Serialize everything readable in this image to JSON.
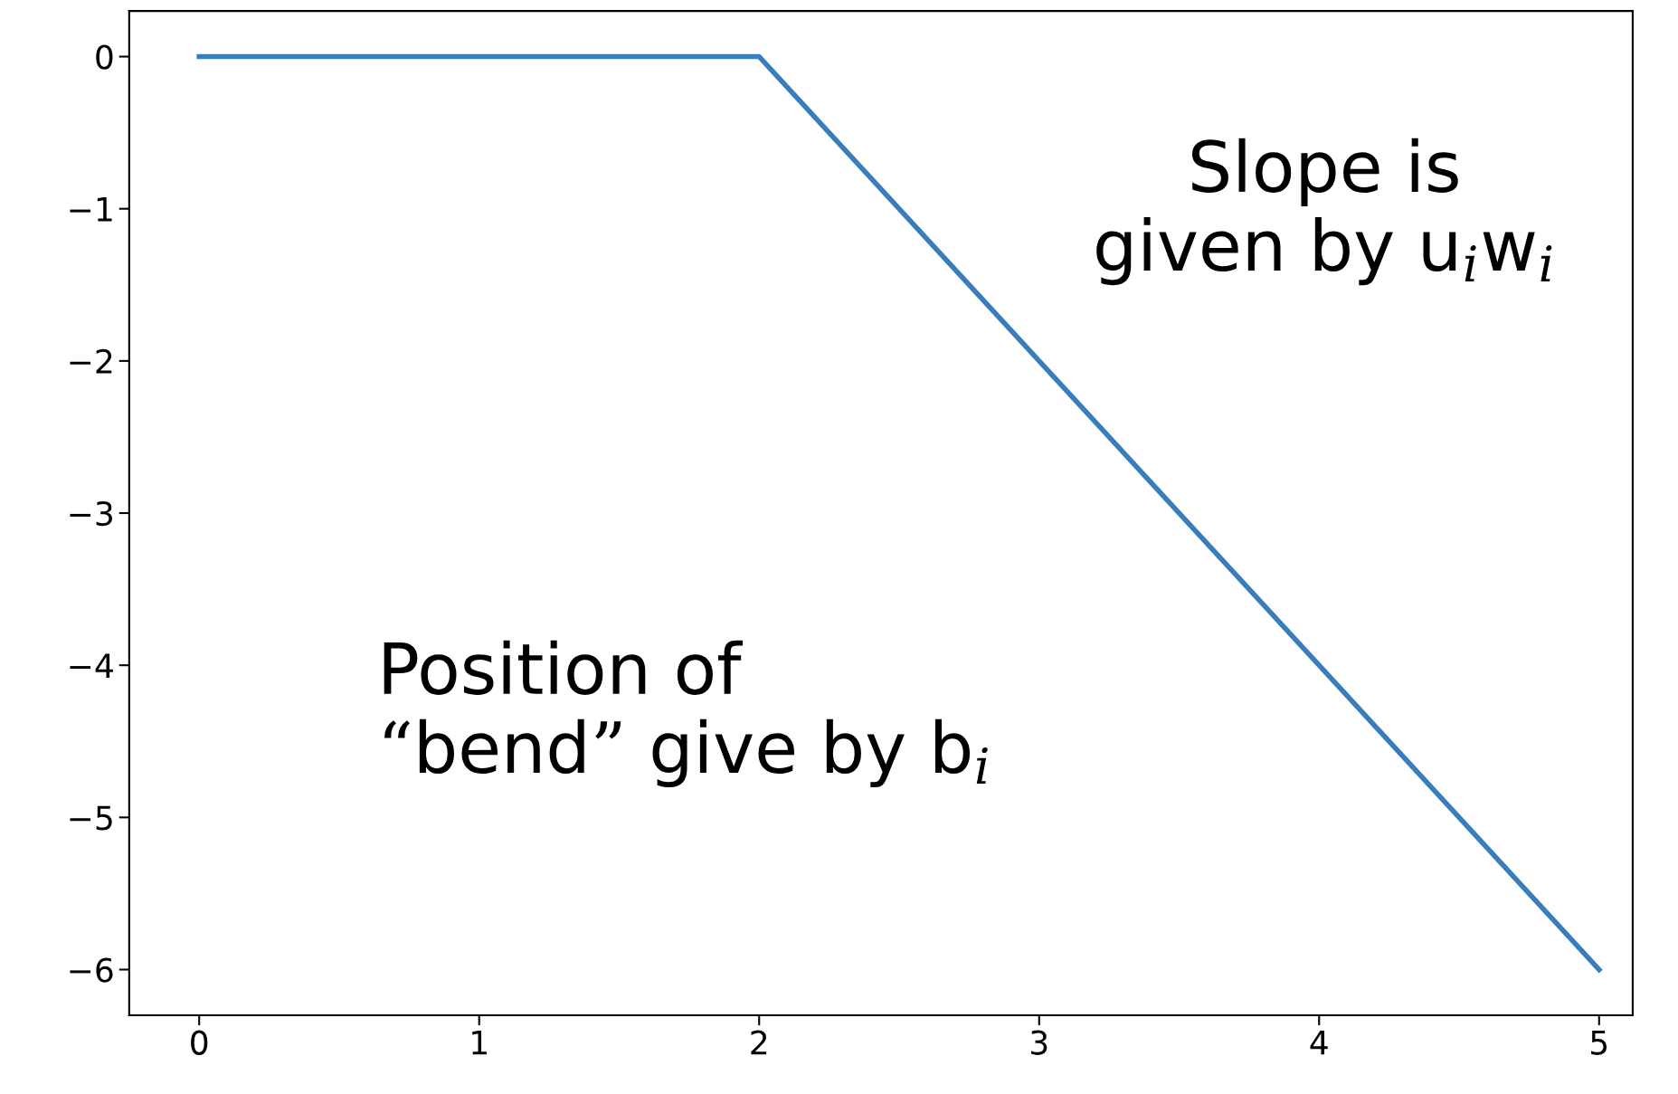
{
  "chart_data": {
    "type": "line",
    "x": [
      0,
      2,
      5
    ],
    "series": [
      {
        "color": "#3a7dbd",
        "values": [
          0,
          0,
          -6
        ]
      }
    ],
    "xlim": [
      -0.25,
      5.12
    ],
    "ylim": [
      -6.3,
      0.3
    ],
    "xticks": [
      0,
      1,
      2,
      3,
      4,
      5
    ],
    "yticks": [
      {
        "value": 0,
        "label": "0"
      },
      {
        "value": -1,
        "label": "−1"
      },
      {
        "value": -2,
        "label": "−2"
      },
      {
        "value": -3,
        "label": "−3"
      },
      {
        "value": -4,
        "label": "−4"
      },
      {
        "value": -5,
        "label": "−5"
      },
      {
        "value": -6,
        "label": "−6"
      }
    ],
    "grid": false,
    "legend": false,
    "marker": "none",
    "line_style": "solid",
    "annotations": [
      "Slope is\ngiven by u$_{i}$w$_{i}$",
      "Position of\n“bend” give by b$_{i}$"
    ]
  }
}
